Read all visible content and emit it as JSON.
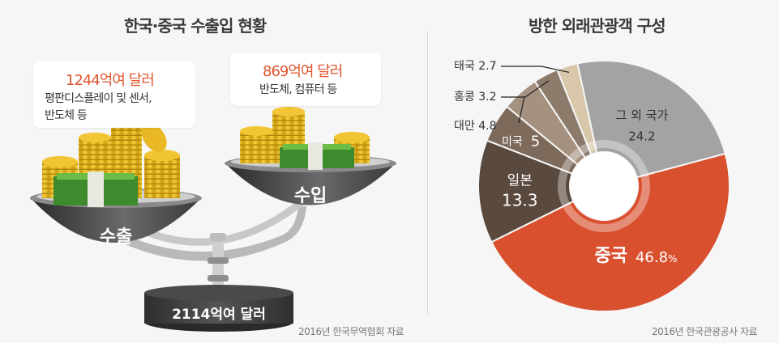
{
  "left": {
    "title": "한국·중국 수출입 현황",
    "export_bubble": {
      "amount": "1244억여 달러",
      "desc_line1": "평판디스플레이 및 센서,",
      "desc_line2": "반도체 등"
    },
    "import_bubble": {
      "amount": "869억여 달러",
      "desc": "반도체, 컴퓨터 등"
    },
    "export_pan_label": "수출",
    "import_pan_label": "수입",
    "total_label": "2114억여 달러",
    "source": "2016년 한국무역협회 자료"
  },
  "right": {
    "title": "방한 외래관광객 구성",
    "source": "2016년 한국관광공사 자료"
  },
  "chart_data": {
    "type": "pie",
    "title": "방한 외래관광객 구성",
    "slices": [
      {
        "label": "중국",
        "value": 46.8,
        "value_text": "46.8",
        "unit": "%",
        "color": "#d9502f"
      },
      {
        "label": "일본",
        "value": 13.3,
        "value_text": "13.3",
        "color": "#5a4a3e"
      },
      {
        "label": "미국",
        "value": 5,
        "value_text": "5",
        "color": "#7d6a5b"
      },
      {
        "label": "대만",
        "value": 4.8,
        "value_text": "4.8",
        "color": "#a5917f"
      },
      {
        "label": "홍콩",
        "value": 3.2,
        "value_text": "3.2",
        "color": "#8c7a6a"
      },
      {
        "label": "태국",
        "value": 2.7,
        "value_text": "2.7",
        "color": "#d8c7aa"
      },
      {
        "label": "그 외 국가",
        "value": 24.2,
        "value_text": "24.2",
        "color": "#a3a3a3"
      }
    ]
  }
}
